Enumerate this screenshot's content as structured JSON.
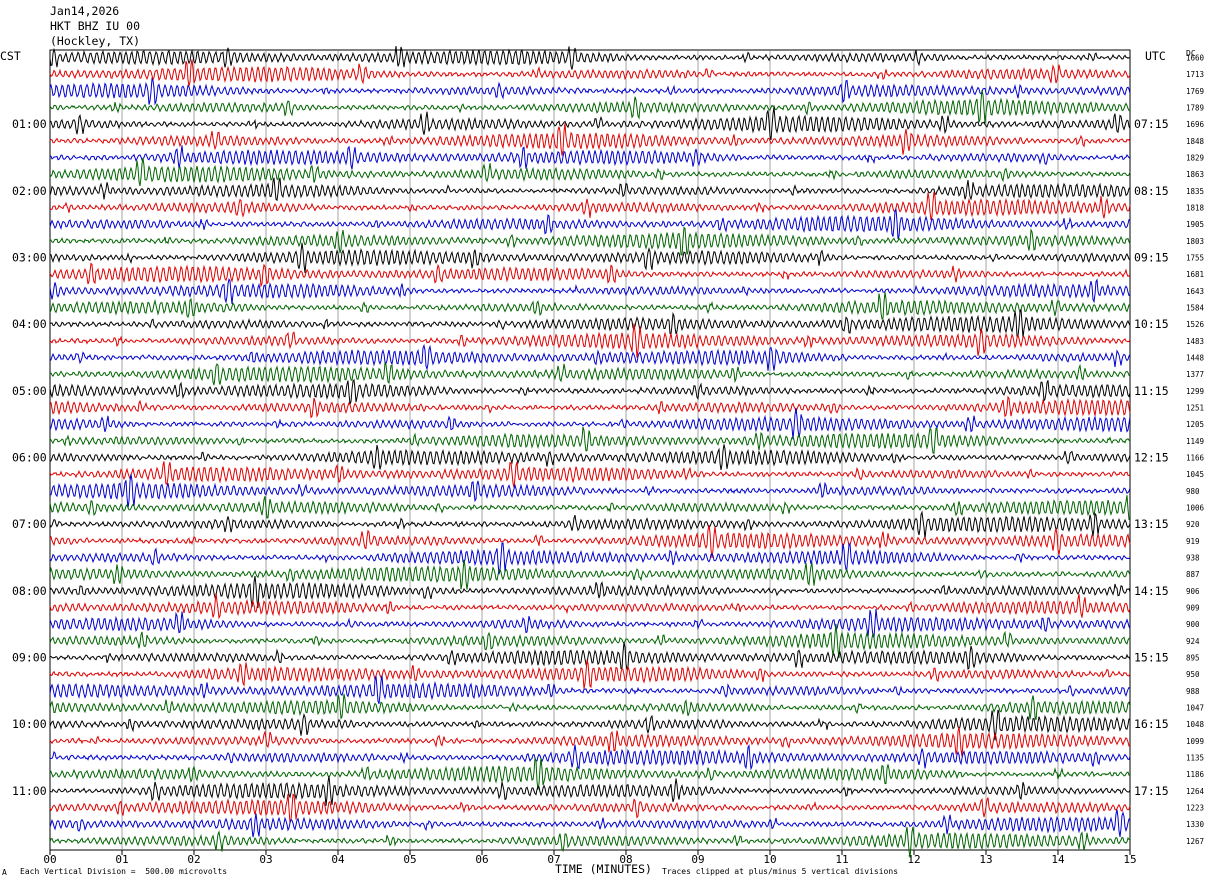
{
  "header": {
    "date": "Jan14,2026",
    "station": "HKT BHZ IU 00",
    "location": "(Hockley, TX)"
  },
  "left_axis_title": "CST",
  "right_axis_title": "UTC",
  "dc_label": "DC",
  "footer": {
    "scale_note": "Each Vertical Division =  500.00 microvolts",
    "xlabel": "TIME (MINUTES)",
    "clip_note": "Traces clipped at plus/minus 5 vertical divisions",
    "corner_mark": "A"
  },
  "colors": {
    "cycle": [
      "#000000",
      "#e00000",
      "#0000d0",
      "#006400"
    ],
    "grid": "#808080"
  },
  "chart_data": {
    "type": "line",
    "title": "Jan14,2026 HKT BHZ IU 00 (Hockley, TX)",
    "xlabel": "TIME (MINUTES)",
    "xlim": [
      0,
      15
    ],
    "x_ticks": [
      "00",
      "01",
      "02",
      "03",
      "04",
      "05",
      "06",
      "07",
      "08",
      "09",
      "10",
      "11",
      "12",
      "13",
      "14",
      "15"
    ],
    "trace_count": 48,
    "minutes_per_trace": 15,
    "left_hour_labels": [
      "01:00",
      "02:00",
      "03:00",
      "04:00",
      "05:00",
      "06:00",
      "07:00",
      "08:00",
      "09:00",
      "10:00",
      "11:00"
    ],
    "right_hour_labels": [
      "07:15",
      "08:15",
      "09:15",
      "10:15",
      "11:15",
      "12:15",
      "13:15",
      "14:15",
      "15:15",
      "16:15",
      "17:15"
    ],
    "dc_offsets": [
      "1660",
      "1713",
      "1769",
      "1789",
      "1696",
      "1848",
      "1829",
      "1863",
      "1835",
      "1818",
      "1905",
      "1803",
      "1755",
      "1681",
      "1643",
      "1584",
      "1526",
      "1483",
      "1448",
      "1377",
      "1299",
      "1251",
      "1205",
      "1149",
      "1166",
      "1045",
      "980",
      "1006",
      "920",
      "919",
      "938",
      "887",
      "906",
      "909",
      "900",
      "924",
      "895",
      "950",
      "988",
      "1047",
      "1048",
      "1099",
      "1135",
      "1186",
      "1264",
      "1223",
      "1330",
      "1267"
    ]
  }
}
